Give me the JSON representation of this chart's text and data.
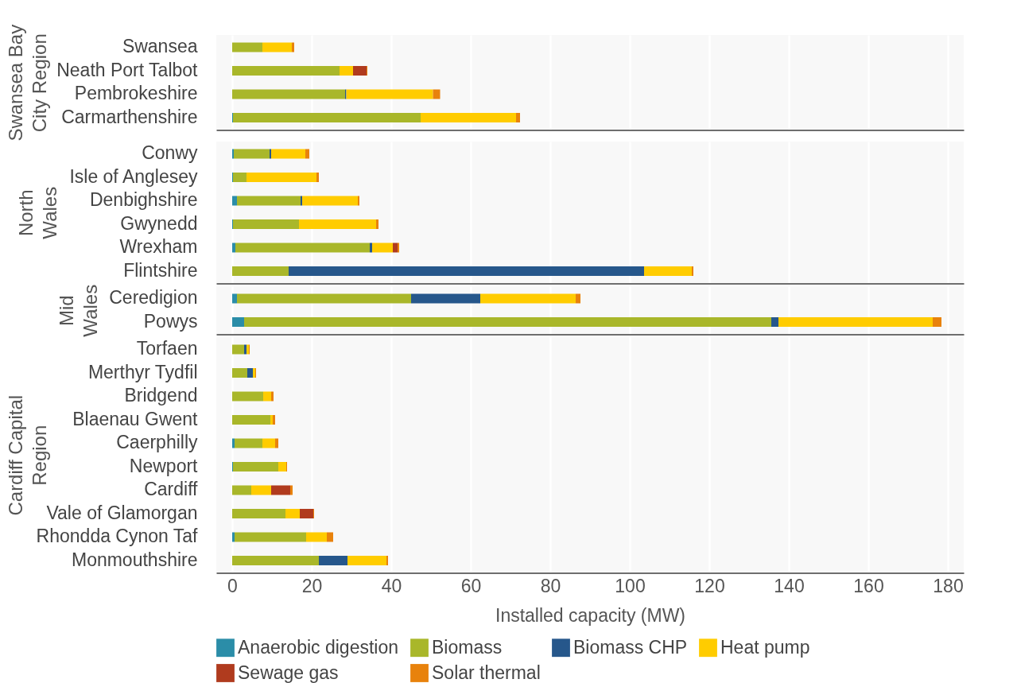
{
  "chart_data": [
    {
      "type": "bar",
      "orientation": "horizontal",
      "stacked": true,
      "ylabel": "Swansea Bay City Region",
      "categories": [
        "Swansea",
        "Neath Port Talbot",
        "Pembrokeshire",
        "Carmarthenshire"
      ],
      "xlim": [
        -4,
        184
      ],
      "xticks": [
        0,
        20,
        40,
        60,
        80,
        100,
        120,
        140,
        160,
        180
      ],
      "grid": "x",
      "tick_labels": "y",
      "series": [
        {
          "color": "#2b8da8",
          "values": [
            0,
            0,
            0,
            0.2
          ]
        },
        {
          "color": "#a9b72a",
          "values": [
            7.6,
            27,
            28.4,
            47.2
          ]
        },
        {
          "color": "#26578b",
          "values": [
            0,
            0,
            0.3,
            0
          ]
        },
        {
          "color": "#ffcc00",
          "values": [
            7.4,
            3.4,
            21.8,
            24
          ]
        },
        {
          "color": "#b03b1e",
          "values": [
            0,
            3.4,
            0,
            0
          ]
        },
        {
          "color": "#e8820c",
          "values": [
            0.6,
            0.2,
            1.8,
            1
          ]
        }
      ]
    },
    {
      "type": "bar",
      "orientation": "horizontal",
      "stacked": true,
      "ylabel": "North Wales",
      "categories": [
        "Conwy",
        "Isle of Anglesey",
        "Denbighshire",
        "Gwynedd",
        "Wrexham",
        "Flintshire"
      ],
      "xlim": [
        -4,
        184
      ],
      "xticks": [
        0,
        20,
        40,
        60,
        80,
        100,
        120,
        140,
        160,
        180
      ],
      "grid": "x",
      "tick_labels": "y",
      "series": [
        {
          "color": "#2b8da8",
          "values": [
            0.4,
            0.2,
            1.2,
            0.2,
            0.8,
            0
          ]
        },
        {
          "color": "#a9b72a",
          "values": [
            9,
            3.4,
            16,
            16.6,
            33.8,
            14.2
          ]
        },
        {
          "color": "#26578b",
          "values": [
            0.4,
            0,
            0.4,
            0,
            0.6,
            89.4
          ]
        },
        {
          "color": "#ffcc00",
          "values": [
            8.6,
            17.6,
            14,
            19.4,
            5.2,
            12
          ]
        },
        {
          "color": "#b03b1e",
          "values": [
            0,
            0,
            0,
            0,
            1.2,
            0
          ]
        },
        {
          "color": "#e8820c",
          "values": [
            1,
            0.6,
            0.4,
            0.6,
            0.4,
            0.4
          ]
        }
      ]
    },
    {
      "type": "bar",
      "orientation": "horizontal",
      "stacked": true,
      "ylabel": "Mid Wales",
      "categories": [
        "Ceredigion",
        "Powys"
      ],
      "xlim": [
        -4,
        184
      ],
      "xticks": [
        0,
        20,
        40,
        60,
        80,
        100,
        120,
        140,
        160,
        180
      ],
      "grid": "x",
      "tick_labels": "y",
      "series": [
        {
          "color": "#2b8da8",
          "values": [
            1.2,
            3
          ]
        },
        {
          "color": "#a9b72a",
          "values": [
            43.8,
            132.6
          ]
        },
        {
          "color": "#26578b",
          "values": [
            17.4,
            1.8
          ]
        },
        {
          "color": "#ffcc00",
          "values": [
            24,
            38.8
          ]
        },
        {
          "color": "#b03b1e",
          "values": [
            0,
            0
          ]
        },
        {
          "color": "#e8820c",
          "values": [
            1.2,
            2.2
          ]
        }
      ]
    },
    {
      "type": "bar",
      "orientation": "horizontal",
      "stacked": true,
      "ylabel": "Cardiff Capital Region",
      "xlabel": "Installed capacity (MW)",
      "categories": [
        "Torfaen",
        "Merthyr Tydfil",
        "Bridgend",
        "Blaenau Gwent",
        "Caerphilly",
        "Newport",
        "Cardiff",
        "Vale of Glamorgan",
        "Rhondda Cynon Taf",
        "Monmouthshire"
      ],
      "xlim": [
        -4,
        184
      ],
      "xticks": [
        0,
        20,
        40,
        60,
        80,
        100,
        120,
        140,
        160,
        180
      ],
      "grid": "x",
      "legend": "bottom",
      "series": [
        {
          "name": "Anaerobic digestion",
          "color": "#2b8da8",
          "values": [
            0,
            0,
            0,
            0,
            0.6,
            0.2,
            0,
            0,
            0.6,
            0
          ]
        },
        {
          "name": "Biomass",
          "color": "#a9b72a",
          "values": [
            3,
            3.8,
            7.8,
            9.6,
            7,
            11.4,
            4.8,
            13.4,
            18,
            21.8
          ]
        },
        {
          "name": "Biomass CHP",
          "color": "#26578b",
          "values": [
            0.6,
            1.4,
            0,
            0,
            0,
            0,
            0,
            0,
            0,
            7.2
          ]
        },
        {
          "name": "Heat pump",
          "color": "#ffcc00",
          "values": [
            0.6,
            0.6,
            2,
            0.6,
            3.2,
            2,
            5,
            3.6,
            5.2,
            9.8
          ]
        },
        {
          "name": "Sewage gas",
          "color": "#b03b1e",
          "values": [
            0,
            0,
            0,
            0,
            0,
            0,
            4.8,
            3.4,
            0,
            0
          ]
        },
        {
          "name": "Solar thermal",
          "color": "#e8820c",
          "values": [
            0.2,
            0.2,
            0.6,
            0.6,
            0.8,
            0.2,
            0.6,
            0.2,
            1.6,
            0.4
          ]
        }
      ]
    }
  ]
}
